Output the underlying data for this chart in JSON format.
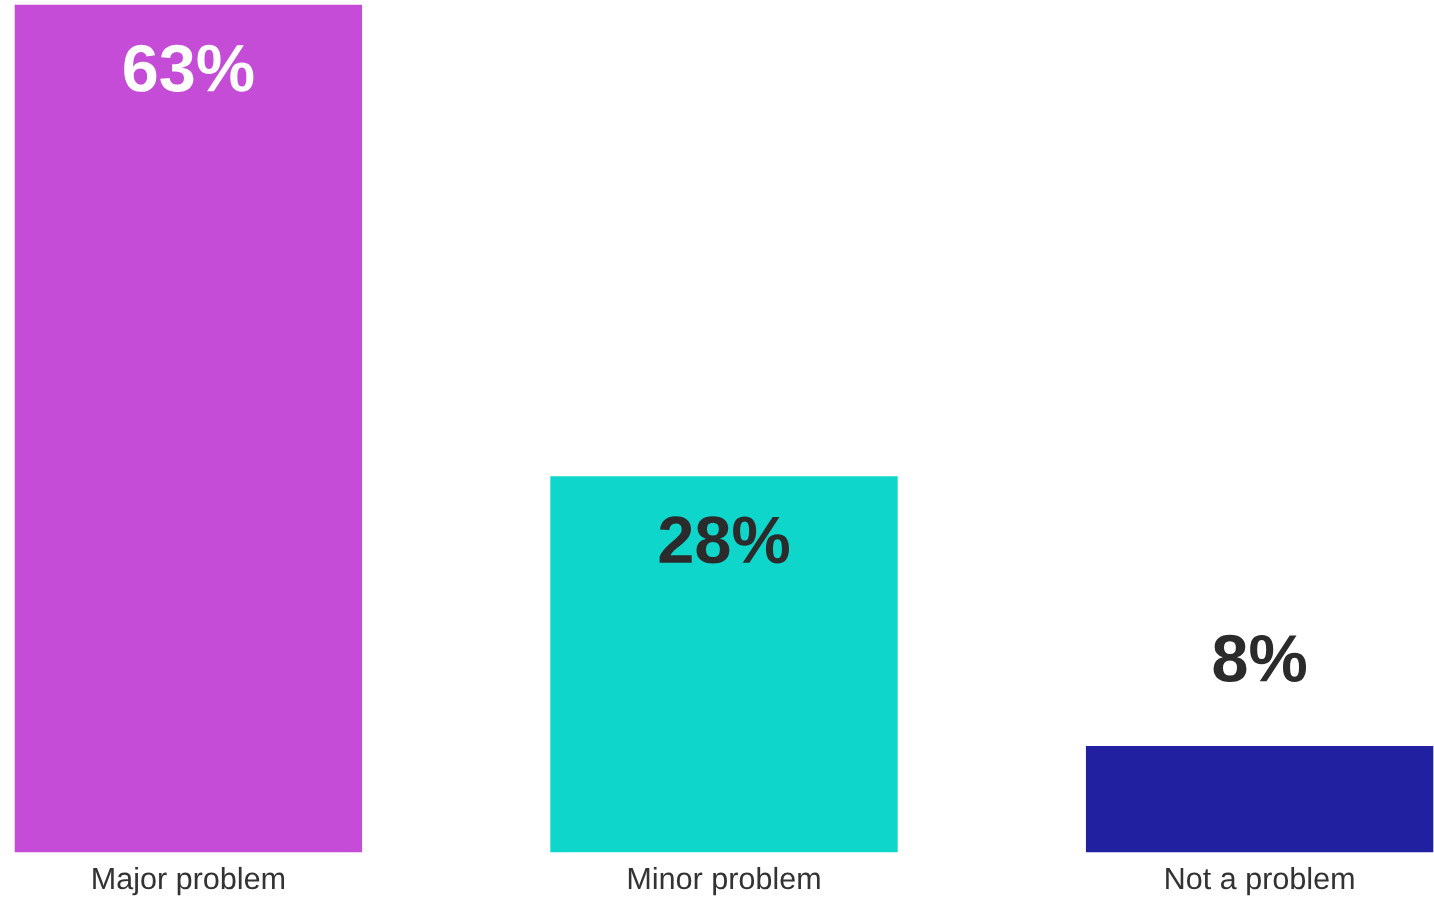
{
  "chart_data": {
    "type": "bar",
    "categories": [
      "Major problem",
      "Minor problem",
      "Not a problem"
    ],
    "values": [
      63,
      28,
      8
    ],
    "colors": [
      "#c44cd6",
      "#0fd6ca",
      "#2020a0"
    ],
    "value_labels": [
      "63%",
      "28%",
      "8%"
    ],
    "ylim": [
      0,
      63
    ],
    "tick_labels": "x",
    "grid": false
  }
}
